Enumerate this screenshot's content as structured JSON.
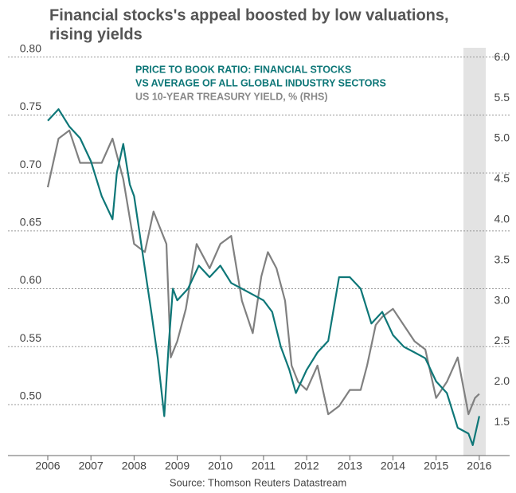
{
  "chart_data": {
    "type": "line",
    "title": "Financial stocks's appeal boosted by low valuations,",
    "subtitle": "rising yields",
    "annotations": [
      "PRICE TO BOOK RATIO: FINANCIAL STOCKS",
      "VS AVERAGE OF ALL GLOBAL INDUSTRY SECTORS",
      "US 10-YEAR TREASURY YIELD, % (RHS)"
    ],
    "source": "Source: Thomson Reuters Datastream",
    "xlim": [
      2006,
      2016.15
    ],
    "xticks": [
      2006,
      2007,
      2008,
      2009,
      2010,
      2011,
      2012,
      2013,
      2014,
      2015,
      2016
    ],
    "ylim": [
      0.456,
      0.808
    ],
    "yticks": [
      {
        "value": 0.5,
        "label": "0.50"
      },
      0.55,
      {
        "value": 0.6,
        "label": "0.60"
      },
      0.65,
      {
        "value": 0.7,
        "label": "0.70"
      },
      0.75,
      {
        "value": 0.8,
        "label": "0.80"
      }
    ],
    "y2lim": [
      1.09,
      6.12
    ],
    "y2ticks": [
      1.5,
      {
        "value": 2,
        "label": "2.0"
      },
      2.5,
      {
        "value": 3,
        "label": "3.0"
      },
      3.5,
      {
        "value": 4,
        "label": "4.0"
      },
      4.5,
      {
        "value": 5,
        "label": "5.0"
      },
      5.5,
      {
        "value": 6,
        "label": "6.0"
      }
    ],
    "grid": true,
    "series": [
      {
        "name": "PRICE TO BOOK RATIO: FINANCIAL STOCKS VS AVERAGE OF ALL GLOBAL INDUSTRY SECTORS",
        "color": "#0e7778",
        "x": [
          2006.0,
          2006.25,
          2006.5,
          2006.75,
          2007.0,
          2007.25,
          2007.5,
          2007.6,
          2007.75,
          2007.9,
          2008.0,
          2008.2,
          2008.4,
          2008.55,
          2008.7,
          2008.8,
          2008.9,
          2009.0,
          2009.25,
          2009.5,
          2009.75,
          2010.0,
          2010.25,
          2010.5,
          2010.75,
          2011.0,
          2011.2,
          2011.4,
          2011.6,
          2011.75,
          2012.0,
          2012.25,
          2012.5,
          2012.75,
          2013.0,
          2013.25,
          2013.5,
          2013.75,
          2014.0,
          2014.25,
          2014.5,
          2014.75,
          2015.0,
          2015.25,
          2015.5,
          2015.75,
          2015.85,
          2016.0
        ],
        "values": [
          0.745,
          0.755,
          0.74,
          0.73,
          0.71,
          0.68,
          0.66,
          0.7,
          0.725,
          0.69,
          0.68,
          0.63,
          0.58,
          0.54,
          0.49,
          0.55,
          0.6,
          0.59,
          0.6,
          0.62,
          0.61,
          0.62,
          0.605,
          0.6,
          0.595,
          0.59,
          0.58,
          0.55,
          0.53,
          0.51,
          0.53,
          0.545,
          0.555,
          0.61,
          0.61,
          0.6,
          0.57,
          0.58,
          0.56,
          0.55,
          0.545,
          0.54,
          0.52,
          0.51,
          0.48,
          0.475,
          0.465,
          0.49
        ]
      },
      {
        "name": "US 10-YEAR TREASURY YIELD, % (RHS)",
        "color": "#808080",
        "axis": "y2",
        "x": [
          2006.0,
          2006.25,
          2006.5,
          2006.75,
          2007.0,
          2007.25,
          2007.5,
          2007.75,
          2008.0,
          2008.25,
          2008.45,
          2008.6,
          2008.75,
          2008.85,
          2009.0,
          2009.2,
          2009.45,
          2009.75,
          2010.0,
          2010.25,
          2010.5,
          2010.75,
          2010.95,
          2011.1,
          2011.3,
          2011.5,
          2011.65,
          2011.8,
          2012.0,
          2012.25,
          2012.5,
          2012.75,
          2013.0,
          2013.25,
          2013.4,
          2013.6,
          2013.75,
          2014.0,
          2014.25,
          2014.5,
          2014.75,
          2015.0,
          2015.25,
          2015.5,
          2015.75,
          2015.9,
          2016.0
        ],
        "values": [
          4.4,
          5.0,
          5.1,
          4.7,
          4.7,
          4.7,
          5.0,
          4.5,
          3.7,
          3.6,
          4.1,
          3.9,
          3.7,
          2.3,
          2.5,
          2.9,
          3.7,
          3.4,
          3.7,
          3.8,
          3.0,
          2.6,
          3.3,
          3.6,
          3.4,
          3.0,
          2.2,
          2.0,
          1.9,
          2.2,
          1.6,
          1.7,
          1.9,
          1.9,
          2.2,
          2.7,
          2.8,
          2.9,
          2.7,
          2.5,
          2.4,
          1.8,
          2.0,
          2.3,
          1.6,
          1.8,
          1.85
        ]
      }
    ]
  }
}
